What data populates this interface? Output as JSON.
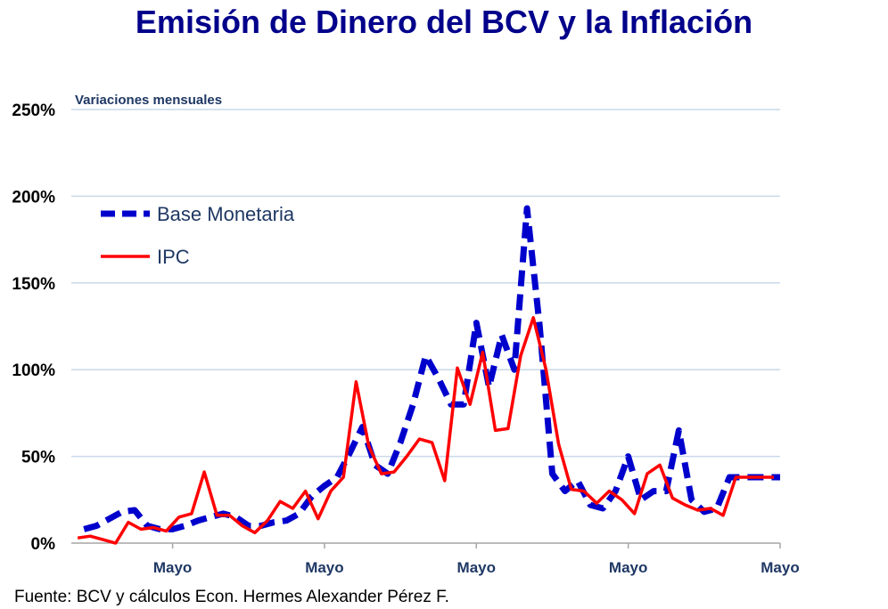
{
  "chart_data": {
    "type": "line",
    "title": "Emisión de Dinero del BCV y la Inflación",
    "subtitle": "Variaciones mensuales",
    "ylim": [
      0,
      250
    ],
    "yticks": [
      0,
      50,
      100,
      150,
      200,
      250
    ],
    "ytick_labels": [
      "0%",
      "50%",
      "100%",
      "150%",
      "200%",
      "250%"
    ],
    "x_ticks": [
      {
        "x": 8,
        "label": "Mayo"
      },
      {
        "x": 20,
        "label": "Mayo"
      },
      {
        "x": 32,
        "label": "Mayo"
      },
      {
        "x": 44,
        "label": "Mayo"
      },
      {
        "x": 56,
        "label": "Mayo"
      }
    ],
    "xlim": [
      0.5,
      56
    ],
    "grid": true,
    "legend_position": "upper-left",
    "series": [
      {
        "name": "Base Monetaria",
        "color": "#0000cd",
        "style": "dashed",
        "x": [
          1,
          2,
          3,
          4,
          5,
          6,
          7,
          8,
          9,
          10,
          11,
          12,
          13,
          14,
          15,
          16,
          17,
          18,
          19,
          20,
          21,
          22,
          23,
          24,
          25,
          26,
          27,
          28,
          29,
          30,
          31,
          32,
          33,
          34,
          35,
          36,
          37,
          38,
          39,
          40,
          41,
          42,
          43,
          44,
          45,
          46,
          47,
          48,
          49,
          50,
          51,
          52,
          53,
          54,
          55,
          56
        ],
        "values": [
          8,
          10,
          14,
          18,
          19,
          10,
          8,
          8,
          10,
          13,
          15,
          17,
          15,
          10,
          10,
          12,
          13,
          17,
          27,
          33,
          38,
          52,
          67,
          45,
          40,
          58,
          80,
          108,
          95,
          80,
          80,
          127,
          90,
          120,
          100,
          193,
          125,
          40,
          30,
          36,
          22,
          20,
          30,
          50,
          25,
          30,
          30,
          65,
          25,
          18,
          20,
          38,
          38,
          38,
          38,
          38
        ]
      },
      {
        "name": "IPC",
        "color": "#ff0000",
        "style": "solid",
        "x": [
          0.5,
          1.5,
          2.5,
          3.5,
          4.5,
          5.5,
          6.5,
          7.5,
          8.5,
          9.5,
          10.5,
          11.5,
          12.5,
          13.5,
          14.5,
          15.5,
          16.5,
          17.5,
          18.5,
          19.5,
          20.5,
          21.5,
          22.5,
          23.5,
          24.5,
          25.5,
          26.5,
          27.5,
          28.5,
          29.5,
          30.5,
          31.5,
          32.5,
          33.5,
          34.5,
          35.5,
          36.5,
          37.5,
          38.5,
          39.5,
          40.5,
          41.5,
          42.5,
          43.5,
          44.5,
          45.5,
          46.5,
          47.5,
          48.5,
          49.5,
          50.5,
          51.5,
          52.5,
          53.5,
          54.5,
          55.5
        ],
        "values": [
          3,
          4,
          2,
          0,
          12,
          8,
          9,
          7,
          15,
          17,
          41,
          16,
          16,
          10,
          6,
          13,
          24,
          20,
          30,
          14,
          30,
          38,
          93,
          56,
          40,
          41,
          50,
          60,
          58,
          36,
          101,
          80,
          110,
          65,
          66,
          108,
          130,
          100,
          57,
          31,
          30,
          23,
          30,
          25,
          17,
          40,
          45,
          26,
          22,
          19,
          20,
          16,
          38,
          38,
          38,
          38
        ]
      }
    ]
  },
  "source": "Fuente: BCV y cálculos  Econ. Hermes Alexander Pérez F."
}
